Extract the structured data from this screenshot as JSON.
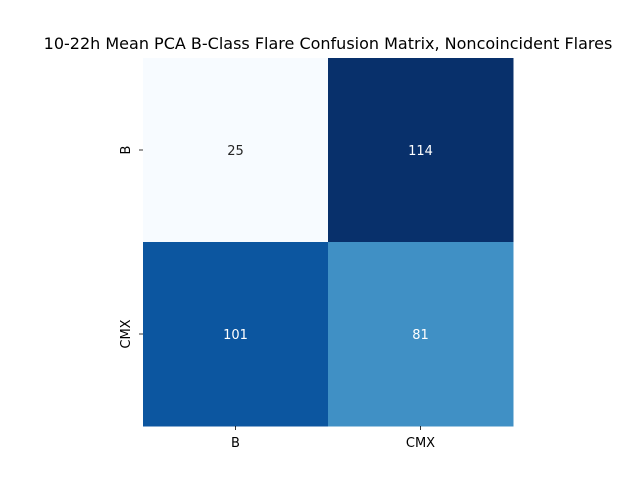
{
  "chart_data": {
    "type": "heatmap",
    "title": "10-22h Mean PCA B-Class Flare Confusion Matrix, Noncoincident Flares",
    "x_categories": [
      "B",
      "CMX"
    ],
    "y_categories": [
      "B",
      "CMX"
    ],
    "values": [
      [
        25,
        114
      ],
      [
        101,
        81
      ]
    ],
    "colormap": "Blues",
    "value_range": [
      25,
      114
    ],
    "colorbar": false,
    "colors": {
      "cells": [
        [
          "#f7fbff",
          "#08306b"
        ],
        [
          "#0c56a0",
          "#4090c5"
        ]
      ],
      "annotation_text": [
        "#262626",
        "#ffffff",
        "#ffffff",
        "#ffffff"
      ]
    }
  }
}
